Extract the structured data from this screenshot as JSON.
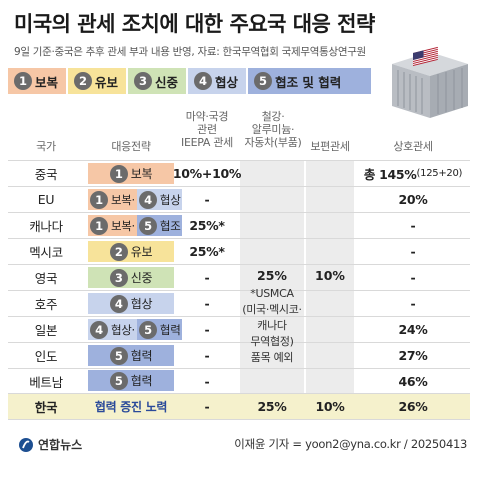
{
  "title": "미국의 관세 조치에 대한 주요국 대응 전략",
  "subtitle": "9일 기준·중국은 추후 관세 부과 내용 반영, 자료: 한국무역협회 국제무역통상연구원",
  "legend": [
    {
      "num": "1",
      "label": "보복",
      "color": "#f6c7a6"
    },
    {
      "num": "2",
      "label": "유보",
      "color": "#f7e39a"
    },
    {
      "num": "3",
      "label": "신중",
      "color": "#cfe3b6"
    },
    {
      "num": "4",
      "label": "협상",
      "color": "#c7d3ec"
    },
    {
      "num": "5",
      "label": "협조 및 협력",
      "color": "#9eb1dd"
    }
  ],
  "headers": {
    "country": "국가",
    "strategy": "대응전략",
    "ieepa_l1": "마약·국경",
    "ieepa_l2": "관련",
    "ieepa_l3": "IEEPA 관세",
    "sector_l1": "철강·",
    "sector_l2": "알루미늄·",
    "sector_l3": "자동차(부품)",
    "universal": "보편관세",
    "reciprocal": "상호관세"
  },
  "rows": [
    {
      "country": "중국",
      "s1num": "1",
      "s1": "보복",
      "ieepa": "10%+10%",
      "recip": "총 145%",
      "recip_note": "(125+20)"
    },
    {
      "country": "EU",
      "s1num": "1",
      "s1": "보복·",
      "s2num": "4",
      "s2": "협상",
      "ieepa": "-",
      "recip": "20%"
    },
    {
      "country": "캐나다",
      "s1num": "1",
      "s1": "보복·",
      "s2num": "5",
      "s2": "협조",
      "ieepa": "25%*",
      "recip": "-"
    },
    {
      "country": "멕시코",
      "s1num": "2",
      "s1": "유보",
      "ieepa": "25%*",
      "recip": "-"
    },
    {
      "country": "영국",
      "s1num": "3",
      "s1": "신중",
      "ieepa": "-",
      "recip": "-"
    },
    {
      "country": "호주",
      "s1num": "4",
      "s1": "협상",
      "ieepa": "-",
      "recip": "-"
    },
    {
      "country": "일본",
      "s1num": "4",
      "s1": "협상·",
      "s2num": "5",
      "s2": "협력",
      "ieepa": "-",
      "recip": "24%"
    },
    {
      "country": "인도",
      "s1num": "5",
      "s1": "협력",
      "ieepa": "-",
      "recip": "27%"
    },
    {
      "country": "베트남",
      "s1num": "5",
      "s1": "협력",
      "ieepa": "-",
      "recip": "46%"
    },
    {
      "country": "한국",
      "s1": "협력 증진 노력",
      "ieepa": "-",
      "sector": "25%",
      "universal": "10%",
      "recip": "26%"
    }
  ],
  "merged": {
    "sector_value": "25%",
    "sector_note_1": "*USMCA",
    "sector_note_2": "(미국·멕시코·",
    "sector_note_3": "캐나다",
    "sector_note_4": "무역협정)",
    "sector_note_5": "품목 예외",
    "universal_value": "10%"
  },
  "footer": {
    "logo": "연합뉴스",
    "credit": "이재윤 기자 = yoon2@yna.co.kr / 20250413"
  },
  "icons": [
    "us-flag-icon",
    "shipping-container-icon",
    "yonhap-logo-icon"
  ]
}
